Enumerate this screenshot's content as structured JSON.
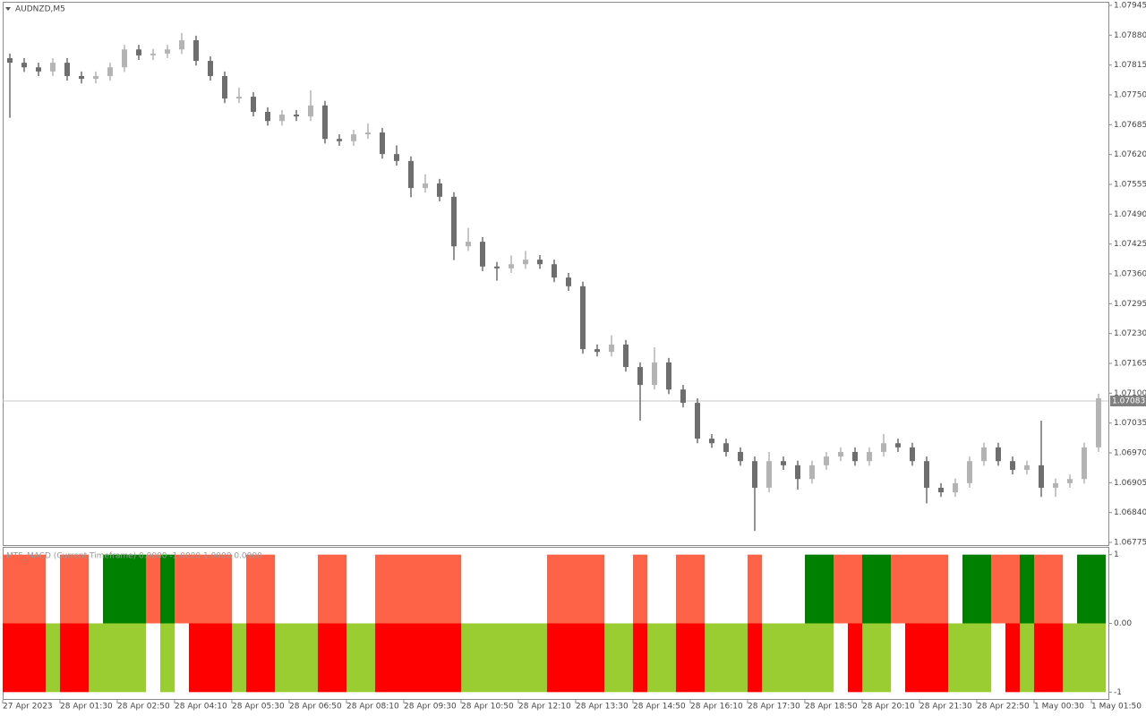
{
  "chart_data": [
    {
      "type": "candlestick",
      "title": "AUDNZD,M5",
      "up_color": "#b4b4b4",
      "down_color": "#6e6e6e",
      "open": [
        1.0783,
        1.0782,
        1.0781,
        1.07801,
        1.0782,
        1.07791,
        1.07785,
        1.07791,
        1.0781,
        1.07849,
        1.07836,
        1.0784,
        1.07849,
        1.07869,
        1.07824,
        1.07791,
        1.07742,
        1.07746,
        1.07713,
        1.07693,
        1.07707,
        1.07703,
        1.07727,
        1.07654,
        1.07649,
        1.07664,
        1.07668,
        1.07621,
        1.07606,
        1.07547,
        1.07557,
        1.07528,
        1.0742,
        1.0743,
        1.07376,
        1.07372,
        1.07381,
        1.07391,
        1.07381,
        1.07352,
        1.07333,
        1.07196,
        1.0719,
        1.07206,
        1.07157,
        1.07118,
        1.07167,
        1.07108,
        1.07079,
        1.07001,
        1.06991,
        1.06972,
        1.06952,
        1.06894,
        1.06952,
        1.06943,
        1.06913,
        1.06943,
        1.06962,
        1.06972,
        1.06952,
        1.06972,
        1.06991,
        1.06982,
        1.06952,
        1.06894,
        1.06884,
        1.06904,
        1.06952,
        1.06982,
        1.06952,
        1.06933,
        1.06943,
        1.06894,
        1.06904,
        1.06913,
        1.06982
      ],
      "high": [
        1.0784,
        1.0783,
        1.0782,
        1.0783,
        1.0783,
        1.07801,
        1.07801,
        1.0782,
        1.07859,
        1.07859,
        1.0785,
        1.07859,
        1.07885,
        1.07879,
        1.07834,
        1.07801,
        1.07766,
        1.07756,
        1.07723,
        1.07717,
        1.07717,
        1.0776,
        1.07737,
        1.07664,
        1.07674,
        1.07688,
        1.07678,
        1.0764,
        1.07616,
        1.07577,
        1.07567,
        1.07538,
        1.0746,
        1.0744,
        1.07386,
        1.074,
        1.0741,
        1.07401,
        1.07391,
        1.07362,
        1.07343,
        1.07206,
        1.07226,
        1.07216,
        1.07167,
        1.072,
        1.07177,
        1.07118,
        1.07089,
        1.07011,
        1.07001,
        1.06982,
        1.06962,
        1.06972,
        1.06962,
        1.06953,
        1.06953,
        1.06972,
        1.06982,
        1.06982,
        1.06982,
        1.07011,
        1.07001,
        1.06992,
        1.06962,
        1.06904,
        1.06914,
        1.06962,
        1.06992,
        1.06992,
        1.06962,
        1.06953,
        1.0704,
        1.06914,
        1.06923,
        1.06992,
        1.07099
      ],
      "low": [
        1.077,
        1.078,
        1.07791,
        1.07791,
        1.07781,
        1.07775,
        1.07775,
        1.07781,
        1.078,
        1.07826,
        1.07826,
        1.0783,
        1.07839,
        1.07814,
        1.07781,
        1.07732,
        1.07732,
        1.07703,
        1.07683,
        1.07683,
        1.07693,
        1.07693,
        1.07644,
        1.07639,
        1.07639,
        1.07654,
        1.07611,
        1.07596,
        1.07527,
        1.07537,
        1.07518,
        1.0739,
        1.0741,
        1.07366,
        1.07345,
        1.07362,
        1.07371,
        1.07371,
        1.07342,
        1.07323,
        1.07186,
        1.0718,
        1.0718,
        1.07147,
        1.0704,
        1.07108,
        1.07098,
        1.07069,
        1.06991,
        1.06981,
        1.06962,
        1.06942,
        1.068,
        1.06884,
        1.06933,
        1.0689,
        1.06903,
        1.06933,
        1.06952,
        1.06942,
        1.06942,
        1.06962,
        1.06972,
        1.06942,
        1.0686,
        1.06874,
        1.06874,
        1.06894,
        1.06942,
        1.06942,
        1.06923,
        1.06923,
        1.06874,
        1.06874,
        1.06894,
        1.06903,
        1.06972
      ],
      "close": [
        1.0782,
        1.0781,
        1.07801,
        1.0782,
        1.07791,
        1.07785,
        1.07791,
        1.0781,
        1.07849,
        1.07836,
        1.0784,
        1.07849,
        1.07869,
        1.07824,
        1.07791,
        1.07742,
        1.07746,
        1.07713,
        1.07693,
        1.07707,
        1.07703,
        1.07727,
        1.07654,
        1.07649,
        1.07664,
        1.07668,
        1.07621,
        1.07606,
        1.07547,
        1.07557,
        1.07528,
        1.0742,
        1.0743,
        1.07376,
        1.07372,
        1.07381,
        1.07391,
        1.07381,
        1.07352,
        1.07333,
        1.07196,
        1.0719,
        1.07206,
        1.07157,
        1.07118,
        1.07167,
        1.07108,
        1.07079,
        1.07001,
        1.06991,
        1.06972,
        1.06952,
        1.06894,
        1.06952,
        1.06943,
        1.06913,
        1.06943,
        1.06962,
        1.06972,
        1.06952,
        1.06972,
        1.06991,
        1.06982,
        1.06952,
        1.06894,
        1.06884,
        1.06904,
        1.06952,
        1.06982,
        1.06952,
        1.06933,
        1.06943,
        1.06894,
        1.06904,
        1.06913,
        1.06982,
        1.07089
      ],
      "current_price": 1.07083,
      "ylim": [
        1.06775,
        1.07945
      ],
      "yticks": [
        1.07945,
        {
          "value": 1.0788,
          "label": "1.07880"
        },
        1.07815,
        {
          "value": 1.0775,
          "label": "1.07750"
        },
        1.07685,
        {
          "value": 1.0762,
          "label": "1.07620"
        },
        1.07555,
        {
          "value": 1.0749,
          "label": "1.07490"
        },
        1.07425,
        {
          "value": 1.0736,
          "label": "1.07360"
        },
        1.07295,
        {
          "value": 1.0723,
          "label": "1.07230"
        },
        1.07165,
        {
          "value": 1.071,
          "label": "1.07100"
        },
        1.07035,
        {
          "value": 1.0697,
          "label": "1.06970"
        },
        1.06905,
        {
          "value": 1.0684,
          "label": "1.06840"
        },
        1.06775
      ],
      "xticks": [
        {
          "value": 0,
          "label": "27 Apr 2023"
        },
        {
          "value": 4,
          "label": "28 Apr 01:30"
        },
        {
          "value": 8,
          "label": "28 Apr 02:50"
        },
        {
          "value": 12,
          "label": "28 Apr 04:10"
        },
        {
          "value": 16,
          "label": "28 Apr 05:30"
        },
        {
          "value": 20,
          "label": "28 Apr 06:50"
        },
        {
          "value": 24,
          "label": "28 Apr 08:10"
        },
        {
          "value": 28,
          "label": "28 Apr 09:30"
        },
        {
          "value": 32,
          "label": "28 Apr 10:50"
        },
        {
          "value": 36,
          "label": "28 Apr 12:10"
        },
        {
          "value": 40,
          "label": "28 Apr 13:30"
        },
        {
          "value": 44,
          "label": "28 Apr 14:50"
        },
        {
          "value": 48,
          "label": "28 Apr 16:10"
        },
        {
          "value": 52,
          "label": "28 Apr 17:30"
        },
        {
          "value": 56,
          "label": "28 Apr 18:50"
        },
        {
          "value": 60,
          "label": "28 Apr 20:10"
        },
        {
          "value": 64,
          "label": "28 Apr 21:30"
        },
        {
          "value": 68,
          "label": "28 Apr 22:50"
        },
        {
          "value": 72,
          "label": "1 May 00:30"
        },
        {
          "value": 76,
          "label": "1 May 01:50"
        }
      ]
    },
    {
      "type": "state-columns",
      "title": "MTF_MACD (Current Timeframe) 0.0000 -1.0000 1.0000 0.0000",
      "ylim": [
        -1.1,
        1.1
      ],
      "yticks": [
        1,
        {
          "value": 0,
          "label": "0.00"
        },
        -1
      ],
      "upper": {
        "values": [
          1,
          1,
          1,
          null,
          1,
          1,
          null,
          1,
          1,
          1,
          1,
          1,
          1,
          1,
          1,
          1,
          null,
          1,
          1,
          null,
          null,
          null,
          1,
          1,
          null,
          null,
          1,
          1,
          1,
          1,
          1,
          1,
          null,
          null,
          null,
          null,
          null,
          null,
          1,
          1,
          1,
          1,
          null,
          null,
          1,
          null,
          null,
          1,
          1,
          null,
          null,
          null,
          1,
          null,
          null,
          null,
          1,
          1,
          1,
          1,
          1,
          1,
          1,
          1,
          1,
          1,
          null,
          1,
          1,
          1,
          1,
          1,
          1,
          1,
          null,
          1,
          1
        ],
        "colors": [
          "#ff6347",
          "#ff6347",
          "#ff6347",
          null,
          "#ff6347",
          "#ff6347",
          null,
          "#008000",
          "#008000",
          "#008000",
          "#ff6347",
          "#008000",
          "#ff6347",
          "#ff6347",
          "#ff6347",
          "#ff6347",
          null,
          "#ff6347",
          "#ff6347",
          null,
          null,
          null,
          "#ff6347",
          "#ff6347",
          null,
          null,
          "#ff6347",
          "#ff6347",
          "#ff6347",
          "#ff6347",
          "#ff6347",
          "#ff6347",
          null,
          null,
          null,
          null,
          null,
          null,
          "#ff6347",
          "#ff6347",
          "#ff6347",
          "#ff6347",
          null,
          null,
          "#ff6347",
          null,
          null,
          "#ff6347",
          "#ff6347",
          null,
          null,
          null,
          "#ff6347",
          null,
          null,
          null,
          "#008000",
          "#008000",
          "#ff6347",
          "#ff6347",
          "#008000",
          "#008000",
          "#ff6347",
          "#ff6347",
          "#ff6347",
          "#ff6347",
          null,
          "#008000",
          "#008000",
          "#ff6347",
          "#ff6347",
          "#008000",
          "#ff6347",
          "#ff6347",
          null,
          "#008000",
          "#008000"
        ]
      },
      "lower": {
        "values": [
          -1,
          -1,
          -1,
          -1,
          -1,
          -1,
          -1,
          -1,
          -1,
          -1,
          null,
          -1,
          null,
          -1,
          -1,
          -1,
          -1,
          -1,
          -1,
          -1,
          -1,
          -1,
          -1,
          -1,
          -1,
          -1,
          -1,
          -1,
          -1,
          -1,
          -1,
          -1,
          -1,
          -1,
          -1,
          -1,
          -1,
          -1,
          -1,
          -1,
          -1,
          -1,
          -1,
          -1,
          -1,
          -1,
          -1,
          -1,
          -1,
          -1,
          -1,
          -1,
          -1,
          -1,
          -1,
          -1,
          -1,
          -1,
          null,
          -1,
          -1,
          -1,
          null,
          -1,
          -1,
          -1,
          -1,
          -1,
          -1,
          null,
          -1,
          -1,
          -1,
          -1,
          -1,
          -1,
          -1
        ],
        "colors": [
          "#ff0000",
          "#ff0000",
          "#ff0000",
          "#9acd32",
          "#ff0000",
          "#ff0000",
          "#9acd32",
          "#9acd32",
          "#9acd32",
          "#9acd32",
          null,
          "#9acd32",
          null,
          "#ff0000",
          "#ff0000",
          "#ff0000",
          "#9acd32",
          "#ff0000",
          "#ff0000",
          "#9acd32",
          "#9acd32",
          "#9acd32",
          "#ff0000",
          "#ff0000",
          "#9acd32",
          "#9acd32",
          "#ff0000",
          "#ff0000",
          "#ff0000",
          "#ff0000",
          "#ff0000",
          "#ff0000",
          "#9acd32",
          "#9acd32",
          "#9acd32",
          "#9acd32",
          "#9acd32",
          "#9acd32",
          "#ff0000",
          "#ff0000",
          "#ff0000",
          "#ff0000",
          "#9acd32",
          "#9acd32",
          "#ff0000",
          "#9acd32",
          "#9acd32",
          "#ff0000",
          "#ff0000",
          "#9acd32",
          "#9acd32",
          "#9acd32",
          "#ff0000",
          "#9acd32",
          "#9acd32",
          "#9acd32",
          "#9acd32",
          "#9acd32",
          null,
          "#ff0000",
          "#9acd32",
          "#9acd32",
          null,
          "#ff0000",
          "#ff0000",
          "#ff0000",
          "#9acd32",
          "#9acd32",
          "#9acd32",
          null,
          "#ff0000",
          "#9acd32",
          "#ff0000",
          "#ff0000",
          "#9acd32",
          "#9acd32",
          "#9acd32"
        ]
      }
    }
  ]
}
